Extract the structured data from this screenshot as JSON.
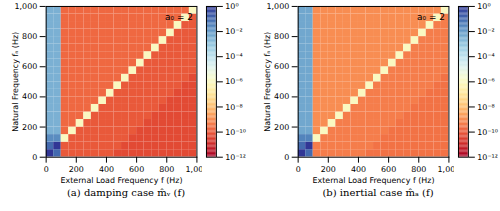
{
  "chart_data": [
    {
      "type": "heatmap",
      "title": "(a) damping case m̂ᵥ (f)",
      "annotation": "a₀ = 2",
      "x_label": "External Load Frequency f (Hz)",
      "y_label": "Natural Frequency fₙ (Hz)",
      "xlim": [
        0,
        1000
      ],
      "ylim": [
        0,
        1000
      ],
      "xticks": [
        0,
        200,
        400,
        600,
        800,
        1000
      ],
      "yticks": [
        0,
        200,
        400,
        600,
        800,
        1000
      ],
      "x_bins": [
        0,
        50,
        100,
        150,
        200,
        250,
        300,
        350,
        400,
        450,
        500,
        550,
        600,
        650,
        700,
        750,
        800,
        850,
        900,
        950,
        1000
      ],
      "y_bins": [
        0,
        50,
        100,
        150,
        200,
        250,
        300,
        350,
        400,
        450,
        500,
        550,
        600,
        650,
        700,
        750,
        800,
        850,
        900,
        950,
        1000
      ],
      "colorbar": {
        "range": [
          1e-12,
          1
        ],
        "log": true,
        "ticks": [
          {
            "value": 1,
            "label": "10⁰"
          },
          {
            "value": 0.01,
            "label": "10⁻²"
          },
          {
            "value": 0.0001,
            "label": "10⁻⁴"
          },
          {
            "value": 1e-06,
            "label": "10⁻⁶"
          },
          {
            "value": 1e-08,
            "label": "10⁻⁸"
          },
          {
            "value": 1e-10,
            "label": "10⁻¹⁰"
          },
          {
            "value": 1e-12,
            "label": "10⁻¹²"
          }
        ]
      },
      "cells": [
        [
          1,
          0.1,
          1e-10,
          1e-10,
          1e-10,
          1e-10,
          1e-10,
          1e-10,
          1e-10,
          5e-11,
          5e-11,
          5e-11,
          5e-11,
          5e-11,
          5e-11,
          5e-11,
          5e-11,
          5e-11,
          5e-11,
          5e-11
        ],
        [
          0.1,
          1,
          1e-10,
          1e-10,
          1e-10,
          1e-10,
          1e-10,
          1e-10,
          1e-10,
          1e-10,
          5e-11,
          5e-11,
          5e-11,
          5e-11,
          5e-11,
          5e-11,
          5e-11,
          5e-11,
          5e-11,
          5e-11
        ],
        [
          0.02,
          0.02,
          1e-06,
          1e-10,
          1e-10,
          1e-10,
          1e-10,
          1e-10,
          1e-10,
          1e-10,
          1e-10,
          5e-11,
          5e-11,
          5e-11,
          5e-11,
          5e-11,
          5e-11,
          5e-11,
          5e-11,
          5e-11
        ],
        [
          0.003,
          0.003,
          2e-10,
          1e-06,
          1e-10,
          1e-10,
          1e-10,
          1e-10,
          1e-10,
          1e-10,
          1e-10,
          1e-10,
          5e-11,
          5e-11,
          5e-11,
          5e-11,
          5e-11,
          5e-11,
          5e-11,
          5e-11
        ],
        [
          0.003,
          0.003,
          2e-10,
          2e-10,
          1e-06,
          1e-10,
          1e-10,
          1e-10,
          1e-10,
          1e-10,
          1e-10,
          1e-10,
          1e-10,
          5e-11,
          5e-11,
          5e-11,
          5e-11,
          5e-11,
          5e-11,
          5e-11
        ],
        [
          0.003,
          0.003,
          2e-10,
          2e-10,
          2e-10,
          1e-06,
          1e-10,
          1e-10,
          1e-10,
          1e-10,
          1e-10,
          1e-10,
          1e-10,
          1e-10,
          5e-11,
          5e-11,
          5e-11,
          5e-11,
          5e-11,
          5e-11
        ],
        [
          0.003,
          0.003,
          2e-10,
          2e-10,
          2e-10,
          2e-10,
          1e-06,
          1e-10,
          1e-10,
          1e-10,
          1e-10,
          1e-10,
          1e-10,
          1e-10,
          1e-10,
          5e-11,
          5e-11,
          5e-11,
          5e-11,
          5e-11
        ],
        [
          0.003,
          0.003,
          2e-10,
          2e-10,
          2e-10,
          2e-10,
          2e-10,
          1e-06,
          1e-10,
          1e-10,
          1e-10,
          1e-10,
          1e-10,
          1e-10,
          1e-10,
          1e-10,
          5e-11,
          5e-11,
          5e-11,
          5e-11
        ],
        [
          0.003,
          0.003,
          2e-10,
          2e-10,
          2e-10,
          2e-10,
          2e-10,
          2e-10,
          1e-06,
          1e-10,
          1e-10,
          1e-10,
          1e-10,
          1e-10,
          1e-10,
          1e-10,
          1e-10,
          5e-11,
          5e-11,
          5e-11
        ],
        [
          0.003,
          0.003,
          2e-10,
          2e-10,
          2e-10,
          2e-10,
          2e-10,
          2e-10,
          2e-10,
          1e-06,
          1e-10,
          1e-10,
          1e-10,
          1e-10,
          1e-10,
          1e-10,
          1e-10,
          1e-10,
          5e-11,
          5e-11
        ],
        [
          0.003,
          0.003,
          2e-10,
          2e-10,
          2e-10,
          2e-10,
          2e-10,
          2e-10,
          2e-10,
          2e-10,
          1e-06,
          1e-10,
          1e-10,
          1e-10,
          1e-10,
          1e-10,
          1e-10,
          1e-10,
          1e-10,
          5e-11
        ],
        [
          0.003,
          0.003,
          2e-10,
          2e-10,
          2e-10,
          2e-10,
          2e-10,
          2e-10,
          2e-10,
          2e-10,
          2e-10,
          1e-06,
          1e-10,
          1e-10,
          1e-10,
          1e-10,
          1e-10,
          1e-10,
          1e-10,
          1e-10
        ],
        [
          0.003,
          0.003,
          2e-10,
          2e-10,
          2e-10,
          2e-10,
          2e-10,
          2e-10,
          2e-10,
          2e-10,
          2e-10,
          2e-10,
          1e-06,
          1e-10,
          1e-10,
          1e-10,
          1e-10,
          1e-10,
          1e-10,
          1e-10
        ],
        [
          0.003,
          0.003,
          2e-10,
          2e-10,
          2e-10,
          2e-10,
          2e-10,
          2e-10,
          2e-10,
          2e-10,
          2e-10,
          2e-10,
          2e-10,
          1e-06,
          1e-10,
          1e-10,
          1e-10,
          1e-10,
          1e-10,
          1e-10
        ],
        [
          0.003,
          0.003,
          2e-10,
          2e-10,
          2e-10,
          2e-10,
          2e-10,
          2e-10,
          2e-10,
          2e-10,
          2e-10,
          2e-10,
          2e-10,
          2e-10,
          1e-06,
          1e-10,
          1e-10,
          1e-10,
          1e-10,
          1e-10
        ],
        [
          0.003,
          0.003,
          2e-10,
          2e-10,
          2e-10,
          2e-10,
          2e-10,
          2e-10,
          2e-10,
          2e-10,
          2e-10,
          2e-10,
          2e-10,
          2e-10,
          2e-10,
          1e-06,
          1e-10,
          1e-10,
          1e-10,
          1e-10
        ],
        [
          0.003,
          0.003,
          2e-10,
          2e-10,
          2e-10,
          2e-10,
          2e-10,
          2e-10,
          2e-10,
          2e-10,
          2e-10,
          2e-10,
          2e-10,
          2e-10,
          2e-10,
          2e-10,
          1e-06,
          1e-10,
          1e-10,
          1e-10
        ],
        [
          0.003,
          0.003,
          2e-10,
          2e-10,
          2e-10,
          2e-10,
          2e-10,
          2e-10,
          2e-10,
          2e-10,
          2e-10,
          2e-10,
          2e-10,
          2e-10,
          2e-10,
          2e-10,
          2e-10,
          1e-06,
          1e-10,
          1e-10
        ],
        [
          0.003,
          0.003,
          2e-10,
          2e-10,
          2e-10,
          2e-10,
          2e-10,
          2e-10,
          2e-10,
          2e-10,
          2e-10,
          2e-10,
          2e-10,
          2e-10,
          2e-10,
          2e-10,
          2e-10,
          2e-10,
          1e-06,
          1e-10
        ],
        [
          0.003,
          0.003,
          2e-10,
          2e-10,
          2e-10,
          2e-10,
          2e-10,
          2e-10,
          2e-10,
          2e-10,
          2e-10,
          2e-10,
          2e-10,
          2e-10,
          2e-10,
          2e-10,
          2e-10,
          2e-10,
          2e-10,
          1e-06
        ]
      ]
    },
    {
      "type": "heatmap",
      "title": "(b) inertial case m̂ₐ (f)",
      "annotation": "a₀ = 2",
      "x_label": "External Load Frequency f (Hz)",
      "y_label": "Natural Frequency fₙ (Hz)",
      "xlim": [
        0,
        1000
      ],
      "ylim": [
        0,
        1000
      ],
      "xticks": [
        0,
        200,
        400,
        600,
        800,
        1000
      ],
      "yticks": [
        0,
        200,
        400,
        600,
        800,
        1000
      ],
      "x_bins": [
        0,
        50,
        100,
        150,
        200,
        250,
        300,
        350,
        400,
        450,
        500,
        550,
        600,
        650,
        700,
        750,
        800,
        850,
        900,
        950,
        1000
      ],
      "y_bins": [
        0,
        50,
        100,
        150,
        200,
        250,
        300,
        350,
        400,
        450,
        500,
        550,
        600,
        650,
        700,
        750,
        800,
        850,
        900,
        950,
        1000
      ],
      "colorbar": {
        "range": [
          1e-12,
          1
        ],
        "log": true,
        "ticks": [
          {
            "value": 1,
            "label": "10⁰"
          },
          {
            "value": 0.01,
            "label": "10⁻²"
          },
          {
            "value": 0.0001,
            "label": "10⁻⁴"
          },
          {
            "value": 1e-06,
            "label": "10⁻⁶"
          },
          {
            "value": 1e-08,
            "label": "10⁻⁸"
          },
          {
            "value": 1e-10,
            "label": "10⁻¹⁰"
          },
          {
            "value": 1e-12,
            "label": "10⁻¹²"
          }
        ]
      },
      "cells": [
        [
          1,
          0.1,
          5e-10,
          5e-10,
          5e-10,
          5e-10,
          5e-10,
          5e-10,
          5e-10,
          3e-10,
          3e-10,
          3e-10,
          3e-10,
          3e-10,
          3e-10,
          3e-10,
          3e-10,
          3e-10,
          3e-10,
          3e-10
        ],
        [
          0.1,
          1,
          5e-10,
          5e-10,
          5e-10,
          5e-10,
          5e-10,
          5e-10,
          5e-10,
          5e-10,
          3e-10,
          3e-10,
          3e-10,
          3e-10,
          3e-10,
          3e-10,
          3e-10,
          3e-10,
          3e-10,
          3e-10
        ],
        [
          0.03,
          0.03,
          1e-06,
          5e-10,
          5e-10,
          5e-10,
          5e-10,
          5e-10,
          5e-10,
          5e-10,
          5e-10,
          3e-10,
          3e-10,
          3e-10,
          3e-10,
          3e-10,
          3e-10,
          3e-10,
          3e-10,
          3e-10
        ],
        [
          0.005,
          0.005,
          1e-09,
          1e-06,
          5e-10,
          5e-10,
          5e-10,
          5e-10,
          5e-10,
          5e-10,
          5e-10,
          5e-10,
          3e-10,
          3e-10,
          3e-10,
          3e-10,
          3e-10,
          3e-10,
          3e-10,
          3e-10
        ],
        [
          0.005,
          0.005,
          1e-09,
          1e-09,
          1e-06,
          5e-10,
          5e-10,
          5e-10,
          5e-10,
          5e-10,
          5e-10,
          5e-10,
          5e-10,
          3e-10,
          3e-10,
          3e-10,
          3e-10,
          3e-10,
          3e-10,
          3e-10
        ],
        [
          0.005,
          0.005,
          1e-09,
          1e-09,
          1e-09,
          1e-06,
          5e-10,
          5e-10,
          5e-10,
          5e-10,
          5e-10,
          5e-10,
          5e-10,
          5e-10,
          3e-10,
          3e-10,
          3e-10,
          3e-10,
          3e-10,
          3e-10
        ],
        [
          0.005,
          0.005,
          1e-09,
          1e-09,
          1e-09,
          1e-09,
          1e-06,
          5e-10,
          5e-10,
          5e-10,
          5e-10,
          5e-10,
          5e-10,
          5e-10,
          5e-10,
          3e-10,
          3e-10,
          3e-10,
          3e-10,
          3e-10
        ],
        [
          0.005,
          0.005,
          1e-09,
          1e-09,
          1e-09,
          1e-09,
          1e-09,
          1e-06,
          5e-10,
          5e-10,
          5e-10,
          5e-10,
          5e-10,
          5e-10,
          5e-10,
          5e-10,
          3e-10,
          3e-10,
          3e-10,
          3e-10
        ],
        [
          0.005,
          0.005,
          1e-09,
          1e-09,
          1e-09,
          1e-09,
          1e-09,
          1e-09,
          1e-06,
          5e-10,
          5e-10,
          5e-10,
          5e-10,
          5e-10,
          5e-10,
          5e-10,
          5e-10,
          3e-10,
          3e-10,
          3e-10
        ],
        [
          0.005,
          0.005,
          1e-09,
          1e-09,
          1e-09,
          1e-09,
          1e-09,
          1e-09,
          1e-09,
          1e-06,
          5e-10,
          5e-10,
          5e-10,
          5e-10,
          5e-10,
          5e-10,
          5e-10,
          5e-10,
          3e-10,
          3e-10
        ],
        [
          0.005,
          0.005,
          1e-09,
          1e-09,
          1e-09,
          1e-09,
          1e-09,
          1e-09,
          1e-09,
          1e-09,
          1e-06,
          5e-10,
          5e-10,
          5e-10,
          5e-10,
          5e-10,
          5e-10,
          5e-10,
          5e-10,
          3e-10
        ],
        [
          0.005,
          0.005,
          1e-09,
          1e-09,
          1e-09,
          1e-09,
          1e-09,
          1e-09,
          1e-09,
          1e-09,
          1e-09,
          1e-06,
          5e-10,
          5e-10,
          5e-10,
          5e-10,
          5e-10,
          5e-10,
          5e-10,
          5e-10
        ],
        [
          0.005,
          0.005,
          1e-09,
          1e-09,
          1e-09,
          1e-09,
          1e-09,
          1e-09,
          1e-09,
          1e-09,
          1e-09,
          1e-09,
          1e-06,
          5e-10,
          5e-10,
          5e-10,
          5e-10,
          5e-10,
          5e-10,
          5e-10
        ],
        [
          0.005,
          0.005,
          1e-09,
          1e-09,
          1e-09,
          1e-09,
          1e-09,
          1e-09,
          1e-09,
          1e-09,
          1e-09,
          1e-09,
          1e-09,
          1e-06,
          5e-10,
          5e-10,
          5e-10,
          5e-10,
          5e-10,
          5e-10
        ],
        [
          0.005,
          0.005,
          1e-09,
          1e-09,
          1e-09,
          1e-09,
          1e-09,
          1e-09,
          1e-09,
          1e-09,
          1e-09,
          1e-09,
          1e-09,
          1e-09,
          1e-06,
          5e-10,
          5e-10,
          5e-10,
          5e-10,
          5e-10
        ],
        [
          0.005,
          0.005,
          1e-09,
          1e-09,
          1e-09,
          1e-09,
          1e-09,
          1e-09,
          1e-09,
          1e-09,
          1e-09,
          1e-09,
          1e-09,
          1e-09,
          1e-09,
          1e-06,
          5e-10,
          5e-10,
          5e-10,
          5e-10
        ],
        [
          0.005,
          0.005,
          1e-09,
          1e-09,
          1e-09,
          1e-09,
          1e-09,
          1e-09,
          1e-09,
          1e-09,
          1e-09,
          1e-09,
          1e-09,
          1e-09,
          1e-09,
          1e-09,
          1e-06,
          5e-10,
          5e-10,
          5e-10
        ],
        [
          0.005,
          0.005,
          1e-09,
          1e-09,
          1e-09,
          1e-09,
          1e-09,
          1e-09,
          1e-09,
          1e-09,
          1e-09,
          1e-09,
          1e-09,
          1e-09,
          1e-09,
          1e-09,
          1e-09,
          1e-06,
          5e-10,
          5e-10
        ],
        [
          0.005,
          0.005,
          1e-09,
          1e-09,
          1e-09,
          1e-09,
          1e-09,
          1e-09,
          1e-09,
          1e-09,
          1e-09,
          1e-09,
          1e-09,
          1e-09,
          1e-09,
          1e-09,
          1e-09,
          1e-09,
          1e-06,
          5e-10
        ],
        [
          0.005,
          0.005,
          1e-09,
          1e-09,
          1e-09,
          1e-09,
          1e-09,
          1e-09,
          1e-09,
          1e-09,
          1e-09,
          1e-09,
          1e-09,
          1e-09,
          1e-09,
          1e-09,
          1e-09,
          1e-09,
          1e-09,
          1e-06
        ]
      ]
    }
  ]
}
